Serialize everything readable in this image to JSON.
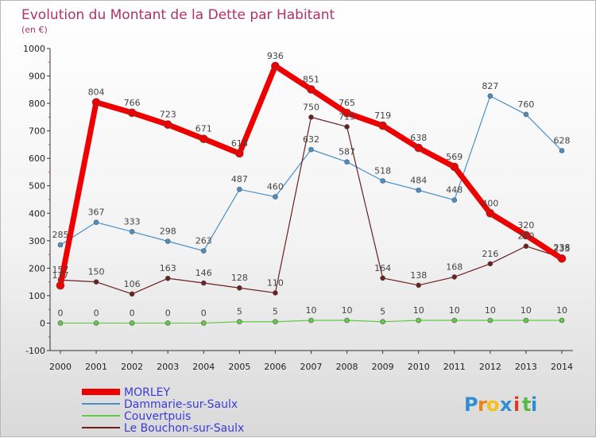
{
  "chart_data": {
    "type": "line",
    "title": "Evolution du Montant de la Dette par Habitant",
    "subtitle": "(en €)",
    "x": [
      "2000",
      "2001",
      "2002",
      "2003",
      "2004",
      "2005",
      "2006",
      "2007",
      "2008",
      "2009",
      "2010",
      "2011",
      "2012",
      "2013",
      "2014"
    ],
    "ylim": [
      -100,
      1000
    ],
    "yticks": [
      "-100",
      "0",
      "100",
      "200",
      "300",
      "400",
      "500",
      "600",
      "700",
      "800",
      "900",
      "1000"
    ],
    "grid": false,
    "legend_position": "bottom-left",
    "series": [
      {
        "name": "MORLEY",
        "color": "#ee0000",
        "values": [
          137,
          804,
          766,
          723,
          671,
          618,
          936,
          851,
          765,
          719,
          638,
          569,
          400,
          320,
          235
        ]
      },
      {
        "name": "Dammarie-sur-Saulx",
        "color": "#4a90c8",
        "values": [
          285,
          367,
          333,
          298,
          263,
          487,
          460,
          632,
          587,
          518,
          484,
          448,
          827,
          760,
          628
        ]
      },
      {
        "name": "Couvertpuis",
        "color": "#66c84a",
        "values": [
          0,
          0,
          0,
          0,
          0,
          5,
          5,
          10,
          10,
          5,
          10,
          10,
          10,
          10,
          10
        ]
      },
      {
        "name": "Le Bouchon-sur-Saulx",
        "color": "#6b1f1f",
        "values": [
          157,
          150,
          106,
          163,
          146,
          128,
          110,
          750,
          715,
          164,
          138,
          168,
          216,
          280,
          238
        ]
      }
    ]
  },
  "brand": {
    "name": "Proxiti",
    "letters": [
      "P",
      "r",
      "o",
      "x",
      "i",
      "t",
      "i"
    ]
  }
}
